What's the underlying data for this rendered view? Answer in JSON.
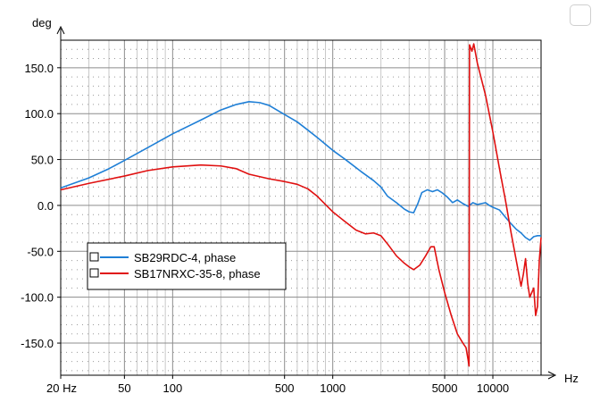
{
  "chart_data": {
    "type": "line",
    "title": "",
    "xlabel": "Hz",
    "ylabel": "deg",
    "xscale": "log",
    "xlim": [
      20,
      20000
    ],
    "ylim": [
      -185,
      180
    ],
    "grid": true,
    "legend_position": "lower-left",
    "x_ticks": [
      {
        "value": 20,
        "label": "20 Hz"
      },
      {
        "value": 50,
        "label": "50"
      },
      {
        "value": 100,
        "label": "100"
      },
      {
        "value": 500,
        "label": "500"
      },
      {
        "value": 1000,
        "label": "1000"
      },
      {
        "value": 5000,
        "label": "5000"
      },
      {
        "value": 10000,
        "label": "10000"
      }
    ],
    "y_ticks": [
      {
        "value": 150,
        "label": "150.0"
      },
      {
        "value": 100,
        "label": "100.0"
      },
      {
        "value": 50,
        "label": "50.0"
      },
      {
        "value": 0,
        "label": "0.0"
      },
      {
        "value": -50,
        "label": "-50.0"
      },
      {
        "value": -100,
        "label": "-100.0"
      },
      {
        "value": -150,
        "label": "-150.0"
      }
    ],
    "series": [
      {
        "name": "SB29RDC-4, phase",
        "color": "#1f7fd6",
        "points": [
          [
            20,
            19
          ],
          [
            30,
            30
          ],
          [
            40,
            40
          ],
          [
            50,
            49
          ],
          [
            70,
            63
          ],
          [
            100,
            78
          ],
          [
            150,
            93
          ],
          [
            200,
            104
          ],
          [
            250,
            110
          ],
          [
            300,
            113
          ],
          [
            350,
            112
          ],
          [
            400,
            109
          ],
          [
            500,
            99
          ],
          [
            600,
            91
          ],
          [
            700,
            82
          ],
          [
            800,
            74
          ],
          [
            1000,
            60
          ],
          [
            1200,
            50
          ],
          [
            1500,
            37
          ],
          [
            1800,
            27
          ],
          [
            2000,
            20
          ],
          [
            2200,
            10
          ],
          [
            2500,
            3
          ],
          [
            2800,
            -4
          ],
          [
            3000,
            -7
          ],
          [
            3200,
            -8
          ],
          [
            3400,
            2
          ],
          [
            3600,
            14
          ],
          [
            3900,
            17
          ],
          [
            4200,
            15
          ],
          [
            4500,
            17
          ],
          [
            4800,
            14
          ],
          [
            5200,
            9
          ],
          [
            5600,
            3
          ],
          [
            6000,
            6
          ],
          [
            6500,
            2
          ],
          [
            7000,
            -1
          ],
          [
            7500,
            3
          ],
          [
            8000,
            1
          ],
          [
            8500,
            2
          ],
          [
            9000,
            3
          ],
          [
            9500,
            0
          ],
          [
            10000,
            -2
          ],
          [
            11000,
            -5
          ],
          [
            12000,
            -13
          ],
          [
            13000,
            -20
          ],
          [
            14000,
            -26
          ],
          [
            15000,
            -30
          ],
          [
            16000,
            -35
          ],
          [
            17000,
            -38
          ],
          [
            18000,
            -34
          ],
          [
            19000,
            -33
          ],
          [
            20000,
            -33
          ]
        ]
      },
      {
        "name": "SB17NRXC-35-8, phase",
        "color": "#e01010",
        "points": [
          [
            20,
            17
          ],
          [
            30,
            24
          ],
          [
            50,
            32
          ],
          [
            70,
            38
          ],
          [
            100,
            42
          ],
          [
            150,
            44
          ],
          [
            200,
            43
          ],
          [
            250,
            40
          ],
          [
            300,
            34
          ],
          [
            400,
            29
          ],
          [
            500,
            26
          ],
          [
            600,
            23
          ],
          [
            700,
            18
          ],
          [
            800,
            10
          ],
          [
            1000,
            -7
          ],
          [
            1200,
            -18
          ],
          [
            1400,
            -27
          ],
          [
            1600,
            -31
          ],
          [
            1800,
            -30
          ],
          [
            2000,
            -33
          ],
          [
            2200,
            -42
          ],
          [
            2500,
            -55
          ],
          [
            2800,
            -63
          ],
          [
            3000,
            -67
          ],
          [
            3200,
            -70
          ],
          [
            3500,
            -65
          ],
          [
            3800,
            -55
          ],
          [
            4100,
            -45
          ],
          [
            4300,
            -45
          ],
          [
            4600,
            -70
          ],
          [
            5000,
            -95
          ],
          [
            5500,
            -120
          ],
          [
            6000,
            -140
          ],
          [
            6500,
            -150
          ],
          [
            6800,
            -155
          ],
          [
            7000,
            -168
          ],
          [
            7100,
            -175
          ],
          [
            7150,
            175
          ],
          [
            7400,
            168
          ],
          [
            7600,
            176
          ],
          [
            8000,
            155
          ],
          [
            9000,
            120
          ],
          [
            10000,
            80
          ],
          [
            11000,
            40
          ],
          [
            12000,
            5
          ],
          [
            13000,
            -30
          ],
          [
            14000,
            -60
          ],
          [
            15000,
            -88
          ],
          [
            15500,
            -75
          ],
          [
            16000,
            -58
          ],
          [
            16500,
            -85
          ],
          [
            17000,
            -100
          ],
          [
            18000,
            -90
          ],
          [
            18500,
            -120
          ],
          [
            19000,
            -110
          ],
          [
            19500,
            -60
          ],
          [
            20000,
            -35
          ]
        ]
      }
    ]
  },
  "legend": {
    "items": [
      {
        "label": "SB29RDC-4, phase",
        "color": "#1f7fd6"
      },
      {
        "label": "SB17NRXC-35-8, phase",
        "color": "#e01010"
      }
    ]
  },
  "axis_labels": {
    "y": "deg",
    "x": "Hz"
  }
}
